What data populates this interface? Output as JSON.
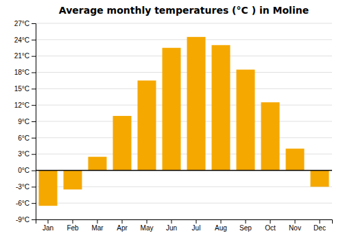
{
  "chart_data": {
    "type": "bar",
    "title": "Average monthly temperatures (°C ) in Moline",
    "categories": [
      "Jan",
      "Feb",
      "Mar",
      "Apr",
      "May",
      "Jun",
      "Jul",
      "Aug",
      "Sep",
      "Oct",
      "Nov",
      "Dec"
    ],
    "values": [
      -6.5,
      -3.5,
      2.5,
      10.0,
      16.5,
      22.5,
      24.5,
      23.0,
      18.5,
      12.5,
      4.0,
      -3.0
    ],
    "color": "#F5A800",
    "ylim": [
      -9,
      27
    ],
    "yticks": [
      {
        "value": -9,
        "label": "-9°C"
      },
      {
        "value": -6,
        "label": "-6°C"
      },
      {
        "value": -3,
        "label": "-3°C"
      },
      {
        "value": 0,
        "label": "0°C"
      },
      {
        "value": 3,
        "label": "3°C"
      },
      {
        "value": 6,
        "label": "6°C"
      },
      {
        "value": 9,
        "label": "9°C"
      },
      {
        "value": 12,
        "label": "12°C"
      },
      {
        "value": 15,
        "label": "15°C"
      },
      {
        "value": 18,
        "label": "18°C"
      },
      {
        "value": 21,
        "label": "21°C"
      },
      {
        "value": 24,
        "label": "24°C"
      },
      {
        "value": 27,
        "label": "27°C"
      }
    ],
    "grid": true
  }
}
